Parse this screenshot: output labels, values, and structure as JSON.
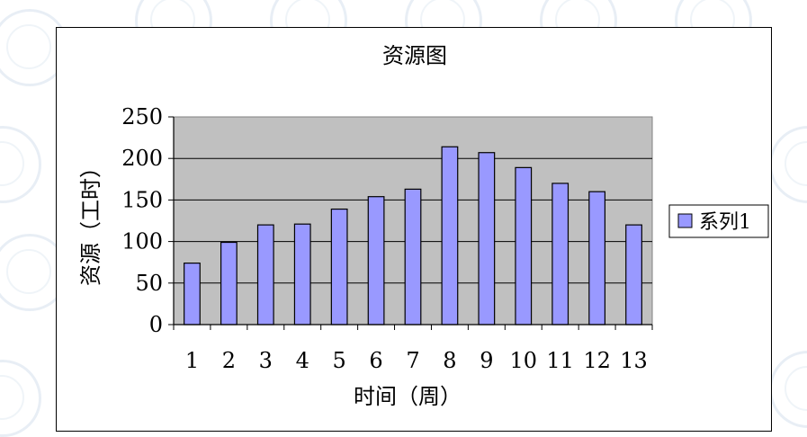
{
  "chart_data": {
    "type": "bar",
    "title": "资源图",
    "xlabel": "时间（周）",
    "ylabel": "资源（工时）",
    "categories": [
      "1",
      "2",
      "3",
      "4",
      "5",
      "6",
      "7",
      "8",
      "9",
      "10",
      "11",
      "12",
      "13"
    ],
    "series": [
      {
        "name": "系列1",
        "values": [
          74,
          99,
          120,
          121,
          139,
          154,
          163,
          214,
          207,
          189,
          170,
          160,
          120
        ]
      }
    ],
    "ylim": [
      0,
      250
    ],
    "yticks": [
      0,
      50,
      100,
      150,
      200,
      250
    ],
    "grid": true,
    "legend_position": "right",
    "colors": {
      "bar_fill": "#9999ff",
      "plot_background": "#c0c0c0",
      "gridline": "#000000"
    }
  }
}
